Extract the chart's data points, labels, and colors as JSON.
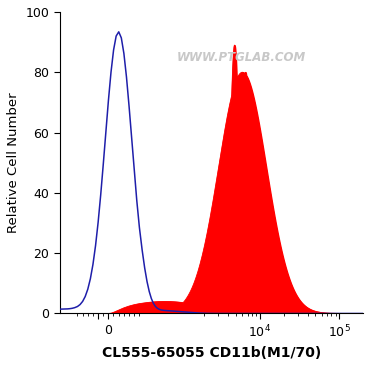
{
  "title": "WWW.PTGLAB.COM",
  "xlabel": "CL555-65055 CD11b(M1/70)",
  "ylabel": "Relative Cell Number",
  "ylim": [
    0,
    100
  ],
  "yticks": [
    0,
    20,
    40,
    60,
    80,
    100
  ],
  "red_fill_color": "#FF0000",
  "blue_line_color": "#1E1EAA",
  "watermark_color": "#C8C8C8",
  "background_color": "#FFFFFF",
  "tick_label_fontsize": 9,
  "axis_label_fontsize": 9.5,
  "xlabel_fontsize": 10,
  "linthresh": 300,
  "linscale": 0.35
}
